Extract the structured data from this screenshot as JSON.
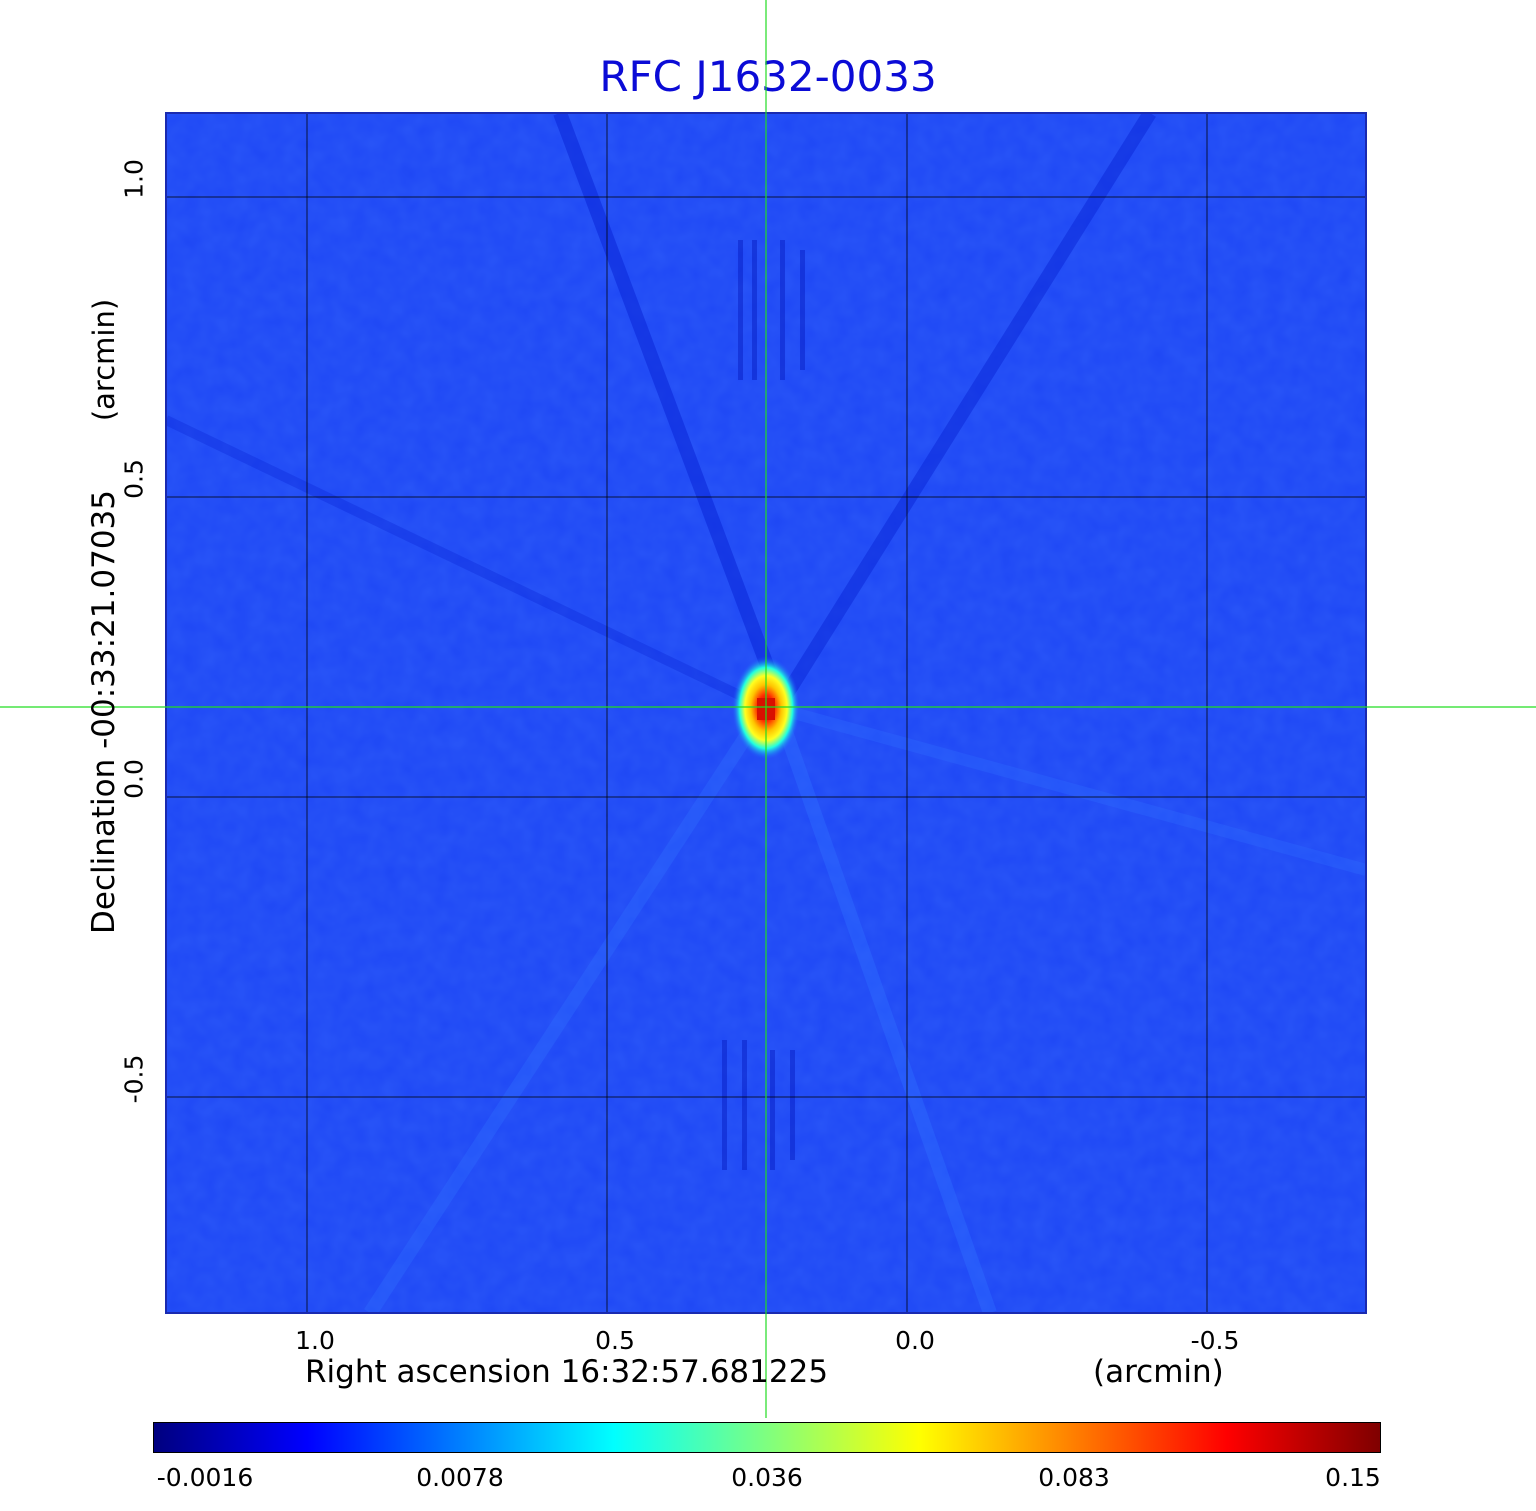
{
  "chart_data": {
    "type": "heatmap",
    "title": "RFC J1632-0033",
    "xlabel": "Right ascension  16:32:57.681225",
    "xunit": "(arcmin)",
    "ylabel": "Declination  -00:33:21.07035",
    "yunit": "(arcmin)",
    "x_ticks": [
      "1.0",
      "0.5",
      "0.0",
      "-0.5"
    ],
    "x_tick_values": [
      1.0,
      0.5,
      0.0,
      -0.5
    ],
    "y_ticks": [
      "1.0",
      "0.5",
      "0.0",
      "-0.5"
    ],
    "y_tick_values": [
      1.0,
      0.5,
      0.0,
      -0.5
    ],
    "xlim": [
      1.235,
      -0.765
    ],
    "ylim": [
      -0.86,
      1.14
    ],
    "grid": true,
    "crosshair": {
      "x": 0.235,
      "y": 0.15,
      "color": "#22dd22"
    },
    "peak": {
      "x": 0.235,
      "y": 0.15,
      "value": 0.15
    },
    "colormap": [
      "#00007f",
      "#0000ff",
      "#007fff",
      "#00ffff",
      "#7fff7f",
      "#ffff00",
      "#ff7f00",
      "#ff0000",
      "#7f0000"
    ],
    "colorbar_ticks": [
      "-0.0016",
      "0.0078",
      "0.036",
      "0.083",
      "0.15"
    ],
    "colorbar_range": [
      -0.0016,
      0.15
    ]
  }
}
